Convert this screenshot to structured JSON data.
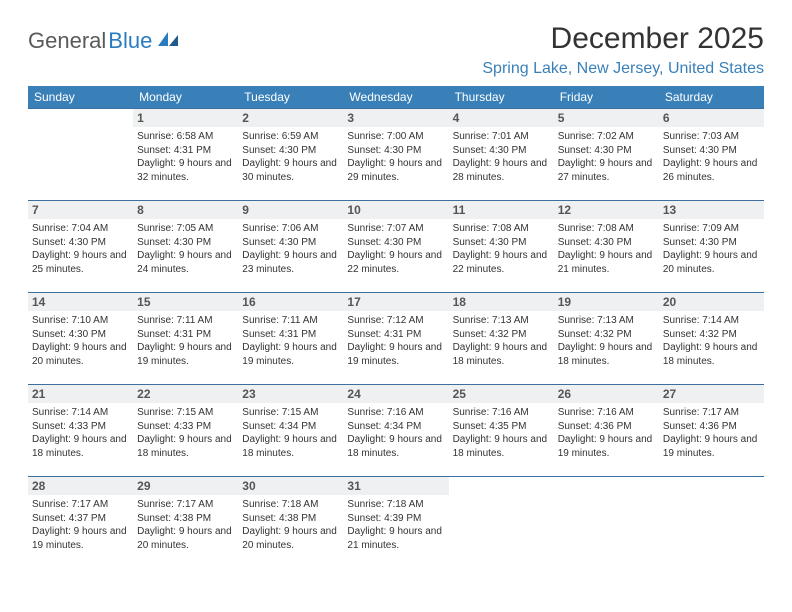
{
  "logo": {
    "text1": "General",
    "text2": "Blue"
  },
  "title": "December 2025",
  "location": "Spring Lake, New Jersey, United States",
  "colors": {
    "header_bg": "#3a80b8",
    "header_text": "#ffffff",
    "rule": "#3a6fa0",
    "daynum_bg": "#eef0f1",
    "location_text": "#3a80b8"
  },
  "day_names": [
    "Sunday",
    "Monday",
    "Tuesday",
    "Wednesday",
    "Thursday",
    "Friday",
    "Saturday"
  ],
  "weeks": [
    [
      {
        "n": "",
        "s": "",
        "t": "",
        "d": "",
        "empty": true
      },
      {
        "n": "1",
        "s": "Sunrise: 6:58 AM",
        "t": "Sunset: 4:31 PM",
        "d": "Daylight: 9 hours and 32 minutes."
      },
      {
        "n": "2",
        "s": "Sunrise: 6:59 AM",
        "t": "Sunset: 4:30 PM",
        "d": "Daylight: 9 hours and 30 minutes."
      },
      {
        "n": "3",
        "s": "Sunrise: 7:00 AM",
        "t": "Sunset: 4:30 PM",
        "d": "Daylight: 9 hours and 29 minutes."
      },
      {
        "n": "4",
        "s": "Sunrise: 7:01 AM",
        "t": "Sunset: 4:30 PM",
        "d": "Daylight: 9 hours and 28 minutes."
      },
      {
        "n": "5",
        "s": "Sunrise: 7:02 AM",
        "t": "Sunset: 4:30 PM",
        "d": "Daylight: 9 hours and 27 minutes."
      },
      {
        "n": "6",
        "s": "Sunrise: 7:03 AM",
        "t": "Sunset: 4:30 PM",
        "d": "Daylight: 9 hours and 26 minutes."
      }
    ],
    [
      {
        "n": "7",
        "s": "Sunrise: 7:04 AM",
        "t": "Sunset: 4:30 PM",
        "d": "Daylight: 9 hours and 25 minutes."
      },
      {
        "n": "8",
        "s": "Sunrise: 7:05 AM",
        "t": "Sunset: 4:30 PM",
        "d": "Daylight: 9 hours and 24 minutes."
      },
      {
        "n": "9",
        "s": "Sunrise: 7:06 AM",
        "t": "Sunset: 4:30 PM",
        "d": "Daylight: 9 hours and 23 minutes."
      },
      {
        "n": "10",
        "s": "Sunrise: 7:07 AM",
        "t": "Sunset: 4:30 PM",
        "d": "Daylight: 9 hours and 22 minutes."
      },
      {
        "n": "11",
        "s": "Sunrise: 7:08 AM",
        "t": "Sunset: 4:30 PM",
        "d": "Daylight: 9 hours and 22 minutes."
      },
      {
        "n": "12",
        "s": "Sunrise: 7:08 AM",
        "t": "Sunset: 4:30 PM",
        "d": "Daylight: 9 hours and 21 minutes."
      },
      {
        "n": "13",
        "s": "Sunrise: 7:09 AM",
        "t": "Sunset: 4:30 PM",
        "d": "Daylight: 9 hours and 20 minutes."
      }
    ],
    [
      {
        "n": "14",
        "s": "Sunrise: 7:10 AM",
        "t": "Sunset: 4:30 PM",
        "d": "Daylight: 9 hours and 20 minutes."
      },
      {
        "n": "15",
        "s": "Sunrise: 7:11 AM",
        "t": "Sunset: 4:31 PM",
        "d": "Daylight: 9 hours and 19 minutes."
      },
      {
        "n": "16",
        "s": "Sunrise: 7:11 AM",
        "t": "Sunset: 4:31 PM",
        "d": "Daylight: 9 hours and 19 minutes."
      },
      {
        "n": "17",
        "s": "Sunrise: 7:12 AM",
        "t": "Sunset: 4:31 PM",
        "d": "Daylight: 9 hours and 19 minutes."
      },
      {
        "n": "18",
        "s": "Sunrise: 7:13 AM",
        "t": "Sunset: 4:32 PM",
        "d": "Daylight: 9 hours and 18 minutes."
      },
      {
        "n": "19",
        "s": "Sunrise: 7:13 AM",
        "t": "Sunset: 4:32 PM",
        "d": "Daylight: 9 hours and 18 minutes."
      },
      {
        "n": "20",
        "s": "Sunrise: 7:14 AM",
        "t": "Sunset: 4:32 PM",
        "d": "Daylight: 9 hours and 18 minutes."
      }
    ],
    [
      {
        "n": "21",
        "s": "Sunrise: 7:14 AM",
        "t": "Sunset: 4:33 PM",
        "d": "Daylight: 9 hours and 18 minutes."
      },
      {
        "n": "22",
        "s": "Sunrise: 7:15 AM",
        "t": "Sunset: 4:33 PM",
        "d": "Daylight: 9 hours and 18 minutes."
      },
      {
        "n": "23",
        "s": "Sunrise: 7:15 AM",
        "t": "Sunset: 4:34 PM",
        "d": "Daylight: 9 hours and 18 minutes."
      },
      {
        "n": "24",
        "s": "Sunrise: 7:16 AM",
        "t": "Sunset: 4:34 PM",
        "d": "Daylight: 9 hours and 18 minutes."
      },
      {
        "n": "25",
        "s": "Sunrise: 7:16 AM",
        "t": "Sunset: 4:35 PM",
        "d": "Daylight: 9 hours and 18 minutes."
      },
      {
        "n": "26",
        "s": "Sunrise: 7:16 AM",
        "t": "Sunset: 4:36 PM",
        "d": "Daylight: 9 hours and 19 minutes."
      },
      {
        "n": "27",
        "s": "Sunrise: 7:17 AM",
        "t": "Sunset: 4:36 PM",
        "d": "Daylight: 9 hours and 19 minutes."
      }
    ],
    [
      {
        "n": "28",
        "s": "Sunrise: 7:17 AM",
        "t": "Sunset: 4:37 PM",
        "d": "Daylight: 9 hours and 19 minutes."
      },
      {
        "n": "29",
        "s": "Sunrise: 7:17 AM",
        "t": "Sunset: 4:38 PM",
        "d": "Daylight: 9 hours and 20 minutes."
      },
      {
        "n": "30",
        "s": "Sunrise: 7:18 AM",
        "t": "Sunset: 4:38 PM",
        "d": "Daylight: 9 hours and 20 minutes."
      },
      {
        "n": "31",
        "s": "Sunrise: 7:18 AM",
        "t": "Sunset: 4:39 PM",
        "d": "Daylight: 9 hours and 21 minutes."
      },
      {
        "n": "",
        "s": "",
        "t": "",
        "d": "",
        "empty": true
      },
      {
        "n": "",
        "s": "",
        "t": "",
        "d": "",
        "empty": true
      },
      {
        "n": "",
        "s": "",
        "t": "",
        "d": "",
        "empty": true
      }
    ]
  ]
}
